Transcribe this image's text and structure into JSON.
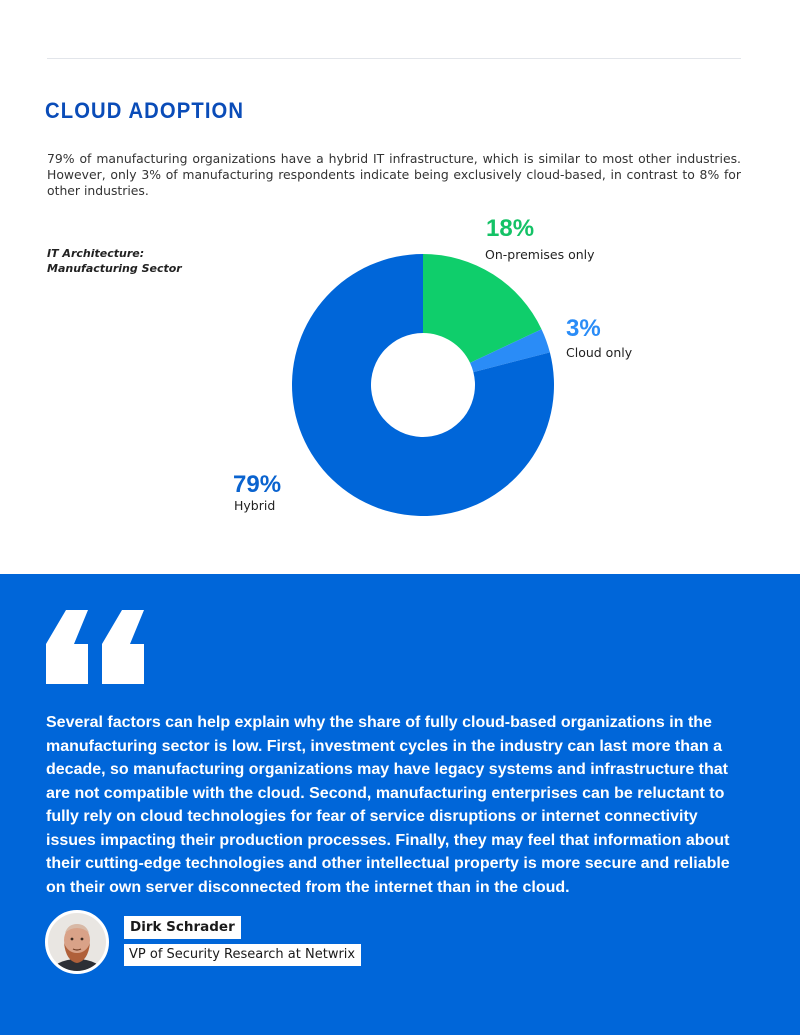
{
  "section": {
    "title": "CLOUD ADOPTION",
    "intro": "79% of manufacturing organizations have a hybrid IT infrastructure, which is similar to most other industries. However, only 3% of manufacturing respondents indicate being exclusively cloud-based, in contrast to 8% for other industries."
  },
  "chart_data": {
    "type": "pie",
    "title": "IT Architecture:",
    "subtitle": "Manufacturing Sector",
    "donut": true,
    "slices": [
      {
        "label": "On-premises only",
        "value": 18,
        "value_label": "18%",
        "color": "#0fce6b",
        "label_color": "#14c266"
      },
      {
        "label": "Cloud only",
        "value": 3,
        "value_label": "3%",
        "color": "#2a8cf7",
        "label_color": "#2a8cf7"
      },
      {
        "label": "Hybrid",
        "value": 79,
        "value_label": "79%",
        "color": "#0066d9",
        "label_color": "#0a63cf"
      }
    ],
    "legend": "none"
  },
  "quote": {
    "icon": "quote-icon",
    "text": "Several factors can help explain why the share of fully cloud-based organizations in the manufacturing sector is low. First, investment cycles in the industry can last more than a decade, so manufacturing organizations may have legacy systems and infrastructure that are not compatible with the cloud. Second, manufacturing enterprises can be reluctant to fully rely on cloud technologies for fear of service disruptions or internet connectivity issues impacting their production processes. Finally, they may feel that information about their cutting-edge technologies and other intellectual property is more secure and reliable on their own server disconnected from the internet than in the cloud.",
    "author_name": "Dirk Schrader",
    "author_role": "VP of Security Research at Netwrix"
  },
  "colors": {
    "title": "#0a4cb8",
    "band": "#0066d9"
  }
}
